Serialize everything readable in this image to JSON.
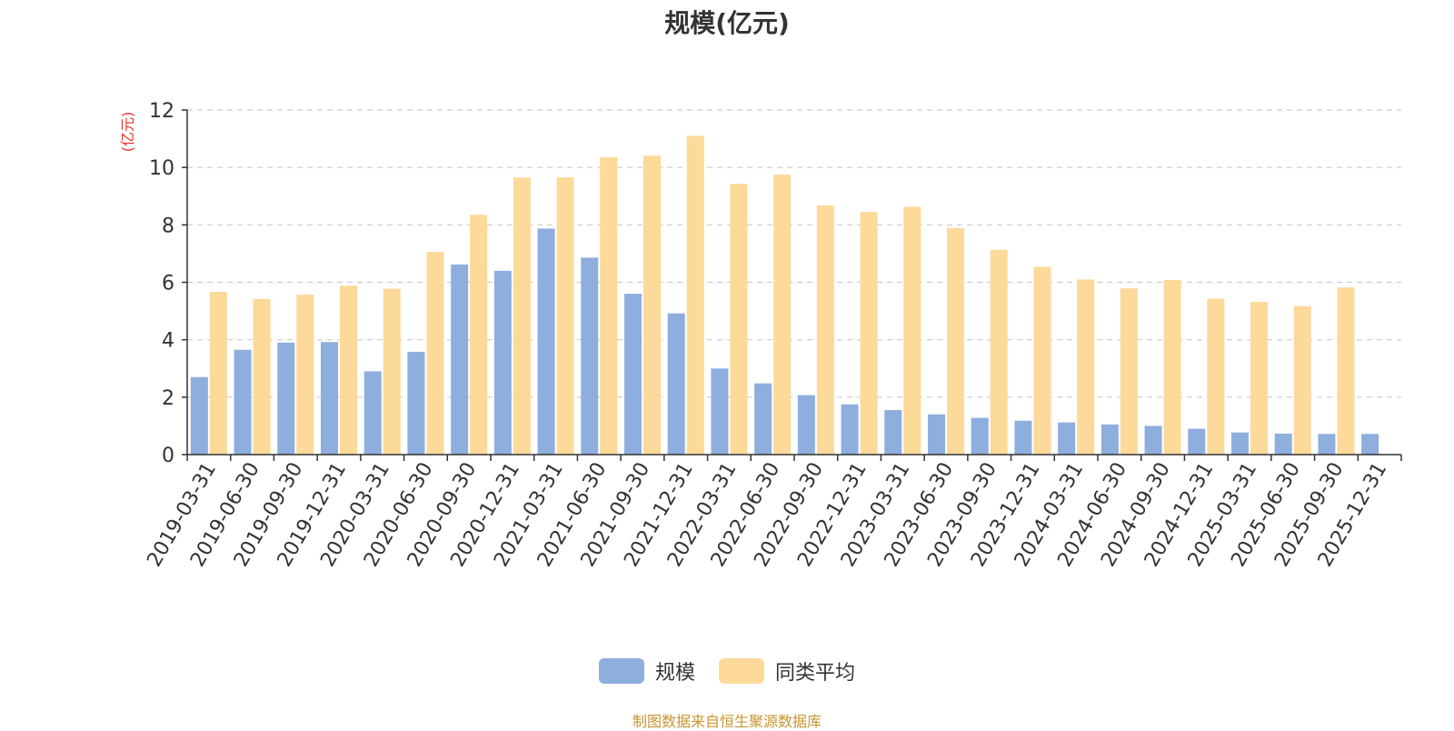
{
  "chart_data": {
    "type": "bar",
    "title": "规模(亿元)",
    "ylabel": "(亿元)",
    "xlabel": "",
    "ylim": [
      0,
      12
    ],
    "yticks": [
      0,
      2,
      4,
      6,
      8,
      10,
      12
    ],
    "grid": "horizontal-dashed",
    "legend_position": "bottom-center",
    "categories": [
      "2019-03-31",
      "2019-06-30",
      "2019-09-30",
      "2019-12-31",
      "2020-03-31",
      "2020-06-30",
      "2020-09-30",
      "2020-12-31",
      "2021-03-31",
      "2021-06-30",
      "2021-09-30",
      "2021-12-31",
      "2022-03-31",
      "2022-06-30",
      "2022-09-30",
      "2022-12-31",
      "2023-03-31",
      "2023-06-30",
      "2023-09-30",
      "2023-12-31",
      "2024-03-31",
      "2024-06-30",
      "2024-09-30",
      "2024-12-31",
      "2025-03-31",
      "2025-06-30",
      "2025-09-30",
      "2025-12-31"
    ],
    "series": [
      {
        "name": "规模",
        "color": "#8eaedd",
        "values": [
          2.7,
          3.65,
          3.9,
          3.92,
          2.9,
          3.58,
          6.62,
          6.4,
          7.87,
          6.86,
          5.6,
          4.92,
          3.0,
          2.48,
          2.07,
          1.75,
          1.55,
          1.4,
          1.28,
          1.18,
          1.12,
          1.05,
          1.0,
          0.9,
          0.77,
          0.73,
          0.72,
          0.72
        ]
      },
      {
        "name": "同类平均",
        "color": "#fdd99a",
        "values": [
          5.67,
          5.42,
          5.57,
          5.88,
          5.78,
          7.06,
          8.35,
          9.65,
          9.66,
          10.36,
          10.41,
          11.1,
          9.43,
          9.75,
          8.68,
          8.45,
          8.63,
          7.89,
          7.13,
          6.54,
          6.1,
          5.79,
          6.08,
          5.43,
          5.32,
          5.17,
          5.82,
          null
        ]
      }
    ]
  },
  "source_text": "制图数据来自恒生聚源数据库",
  "colors": {
    "axis_unit": "#e8342a",
    "source": "#c9952e",
    "text": "#333333",
    "grid": "#cccccc"
  }
}
